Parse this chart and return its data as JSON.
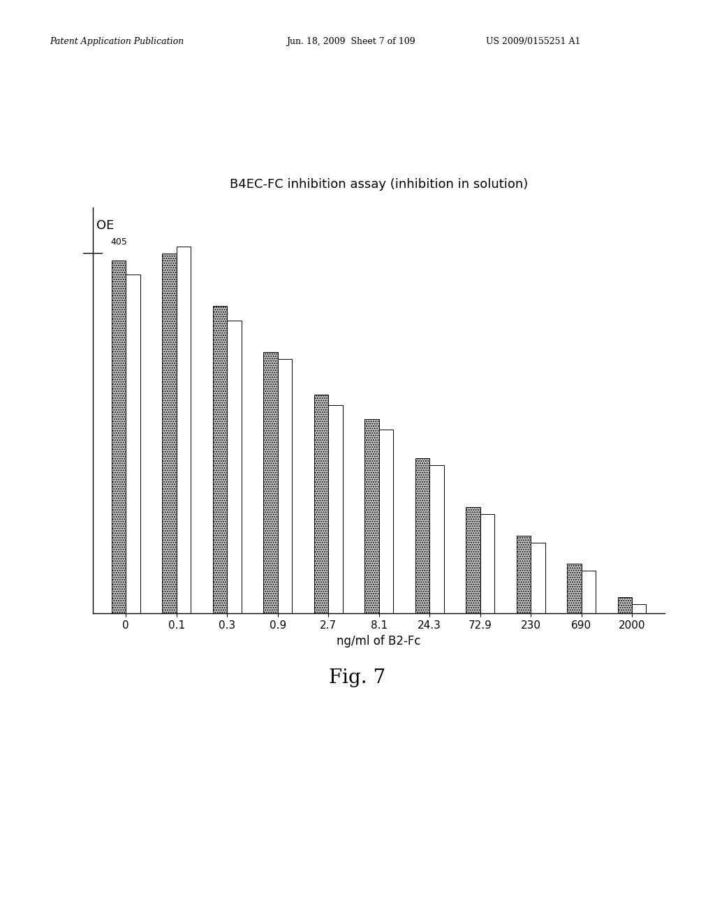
{
  "title": "B4EC-FC inhibition assay (inhibition in solution)",
  "xlabel": "ng/ml of B2-Fc",
  "fig_caption": "Fig. 7",
  "header_left": "Patent Application Publication",
  "header_mid": "Jun. 18, 2009  Sheet 7 of 109",
  "header_right": "US 2009/0155251 A1",
  "categories": [
    "0",
    "0.1",
    "0.3",
    "0.9",
    "2.7",
    "8.1",
    "24.3",
    "72.9",
    "230",
    "690",
    "2000"
  ],
  "hatched_values": [
    1.0,
    1.02,
    0.87,
    0.74,
    0.62,
    0.55,
    0.44,
    0.3,
    0.22,
    0.14,
    0.045
  ],
  "white_values": [
    0.96,
    1.04,
    0.83,
    0.72,
    0.59,
    0.52,
    0.42,
    0.28,
    0.2,
    0.12,
    0.025
  ],
  "ylim": [
    0,
    1.15
  ],
  "bar_width": 0.28,
  "hatched_color": "#c8c8c8",
  "white_color": "#ffffff",
  "edge_color": "#000000",
  "background_color": "#ffffff",
  "title_fontsize": 13,
  "axis_label_fontsize": 12,
  "tick_fontsize": 11,
  "caption_fontsize": 20,
  "header_fontsize": 9
}
